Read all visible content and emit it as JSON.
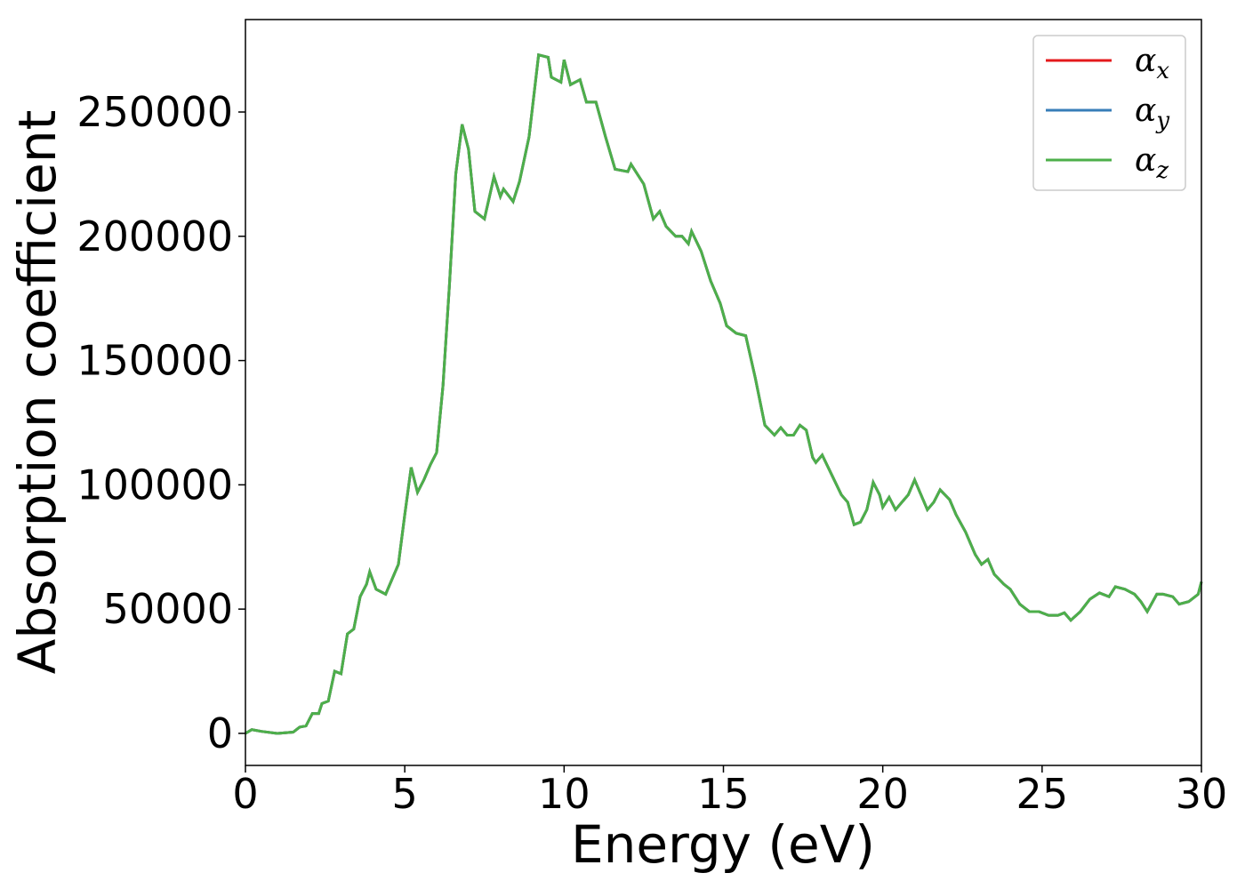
{
  "chart_data": {
    "type": "line",
    "xlabel": "Energy (eV)",
    "ylabel": "Absorption coefficient",
    "x": [
      0,
      0.2,
      0.5,
      1.0,
      1.5,
      1.7,
      1.9,
      2.1,
      2.3,
      2.4,
      2.6,
      2.8,
      3.0,
      3.2,
      3.4,
      3.6,
      3.8,
      3.9,
      4.1,
      4.4,
      4.8,
      5.0,
      5.2,
      5.4,
      5.6,
      5.8,
      6.0,
      6.2,
      6.4,
      6.6,
      6.8,
      7.0,
      7.2,
      7.5,
      7.8,
      8.0,
      8.1,
      8.4,
      8.6,
      8.9,
      9.1,
      9.2,
      9.5,
      9.6,
      9.9,
      10.0,
      10.2,
      10.5,
      10.7,
      11.0,
      11.3,
      11.6,
      12.0,
      12.1,
      12.3,
      12.5,
      12.8,
      13.0,
      13.2,
      13.5,
      13.7,
      13.9,
      14.0,
      14.3,
      14.6,
      14.9,
      15.1,
      15.4,
      15.7,
      16.0,
      16.3,
      16.6,
      16.8,
      17.0,
      17.2,
      17.4,
      17.6,
      17.8,
      17.9,
      18.1,
      18.4,
      18.7,
      18.9,
      19.1,
      19.3,
      19.5,
      19.7,
      19.9,
      20.0,
      20.2,
      20.4,
      20.6,
      20.8,
      21.0,
      21.2,
      21.4,
      21.6,
      21.8,
      22.1,
      22.3,
      22.6,
      22.9,
      23.1,
      23.3,
      23.5,
      23.8,
      24.0,
      24.3,
      24.6,
      24.9,
      25.2,
      25.5,
      25.7,
      25.9,
      26.2,
      26.5,
      26.8,
      27.1,
      27.3,
      27.6,
      27.9,
      28.1,
      28.3,
      28.6,
      28.8,
      29.1,
      29.3,
      29.6,
      29.9,
      30.0
    ],
    "series": [
      {
        "name": "αx",
        "color": "#e41a1c",
        "values": [
          0,
          1500,
          800,
          0,
          500,
          2500,
          3000,
          8000,
          8000,
          12000,
          13000,
          25000,
          24000,
          40000,
          42000,
          55000,
          60000,
          65000,
          58000,
          56000,
          68000,
          88000,
          107000,
          97000,
          102000,
          108000,
          113000,
          140000,
          180000,
          225000,
          245000,
          235000,
          210000,
          207000,
          224000,
          216000,
          219000,
          214000,
          222000,
          240000,
          262000,
          273000,
          272000,
          264000,
          262000,
          271000,
          261000,
          263000,
          254000,
          254000,
          240000,
          227000,
          226000,
          229000,
          225000,
          221000,
          207000,
          210000,
          204000,
          200000,
          200000,
          197000,
          202000,
          194000,
          182000,
          173000,
          164000,
          161000,
          160000,
          143000,
          124000,
          120000,
          123000,
          120000,
          120000,
          124000,
          122000,
          111000,
          109000,
          112000,
          104000,
          96000,
          93000,
          84000,
          85000,
          90000,
          101000,
          96000,
          91000,
          95000,
          90000,
          93000,
          96000,
          102000,
          96000,
          90000,
          93000,
          98000,
          94000,
          88000,
          81000,
          72000,
          68000,
          70000,
          64000,
          60000,
          58000,
          52000,
          49000,
          49000,
          47500,
          47500,
          48500,
          45500,
          49000,
          54000,
          56500,
          55000,
          59000,
          58000,
          56000,
          53000,
          49000,
          56000,
          56000,
          55000,
          52000,
          53000,
          56000,
          61000
        ]
      },
      {
        "name": "αy",
        "color": "#377eb8",
        "values": [
          0,
          1500,
          800,
          0,
          500,
          2500,
          3000,
          8000,
          8000,
          12000,
          13000,
          25000,
          24000,
          40000,
          42000,
          55000,
          60000,
          65000,
          58000,
          56000,
          68000,
          88000,
          107000,
          97000,
          102000,
          108000,
          113000,
          140000,
          180000,
          225000,
          245000,
          235000,
          210000,
          207000,
          224000,
          216000,
          219000,
          214000,
          222000,
          240000,
          262000,
          273000,
          272000,
          264000,
          262000,
          271000,
          261000,
          263000,
          254000,
          254000,
          240000,
          227000,
          226000,
          229000,
          225000,
          221000,
          207000,
          210000,
          204000,
          200000,
          200000,
          197000,
          202000,
          194000,
          182000,
          173000,
          164000,
          161000,
          160000,
          143000,
          124000,
          120000,
          123000,
          120000,
          120000,
          124000,
          122000,
          111000,
          109000,
          112000,
          104000,
          96000,
          93000,
          84000,
          85000,
          90000,
          101000,
          96000,
          91000,
          95000,
          90000,
          93000,
          96000,
          102000,
          96000,
          90000,
          93000,
          98000,
          94000,
          88000,
          81000,
          72000,
          68000,
          70000,
          64000,
          60000,
          58000,
          52000,
          49000,
          49000,
          47500,
          47500,
          48500,
          45500,
          49000,
          54000,
          56500,
          55000,
          59000,
          58000,
          56000,
          53000,
          49000,
          56000,
          56000,
          55000,
          52000,
          53000,
          56000,
          61000
        ]
      },
      {
        "name": "αz",
        "color": "#4daf4a",
        "values": [
          0,
          1500,
          800,
          0,
          500,
          2500,
          3000,
          8000,
          8000,
          12000,
          13000,
          25000,
          24000,
          40000,
          42000,
          55000,
          60000,
          65000,
          58000,
          56000,
          68000,
          88000,
          107000,
          97000,
          102000,
          108000,
          113000,
          140000,
          180000,
          225000,
          245000,
          235000,
          210000,
          207000,
          224000,
          216000,
          219000,
          214000,
          222000,
          240000,
          262000,
          273000,
          272000,
          264000,
          262000,
          271000,
          261000,
          263000,
          254000,
          254000,
          240000,
          227000,
          226000,
          229000,
          225000,
          221000,
          207000,
          210000,
          204000,
          200000,
          200000,
          197000,
          202000,
          194000,
          182000,
          173000,
          164000,
          161000,
          160000,
          143000,
          124000,
          120000,
          123000,
          120000,
          120000,
          124000,
          122000,
          111000,
          109000,
          112000,
          104000,
          96000,
          93000,
          84000,
          85000,
          90000,
          101000,
          96000,
          91000,
          95000,
          90000,
          93000,
          96000,
          102000,
          96000,
          90000,
          93000,
          98000,
          94000,
          88000,
          81000,
          72000,
          68000,
          70000,
          64000,
          60000,
          58000,
          52000,
          49000,
          49000,
          47500,
          47500,
          48500,
          45500,
          49000,
          54000,
          56500,
          55000,
          59000,
          58000,
          56000,
          53000,
          49000,
          56000,
          56000,
          55000,
          52000,
          53000,
          56000,
          61000
        ]
      }
    ],
    "xlim": [
      0,
      30
    ],
    "xticks": [
      0,
      5,
      10,
      15,
      20,
      25,
      30
    ],
    "ylim": [
      -12900,
      287200
    ],
    "yticks": [
      0,
      50000,
      100000,
      150000,
      200000,
      250000
    ],
    "legend": "upper right",
    "grid": false
  }
}
